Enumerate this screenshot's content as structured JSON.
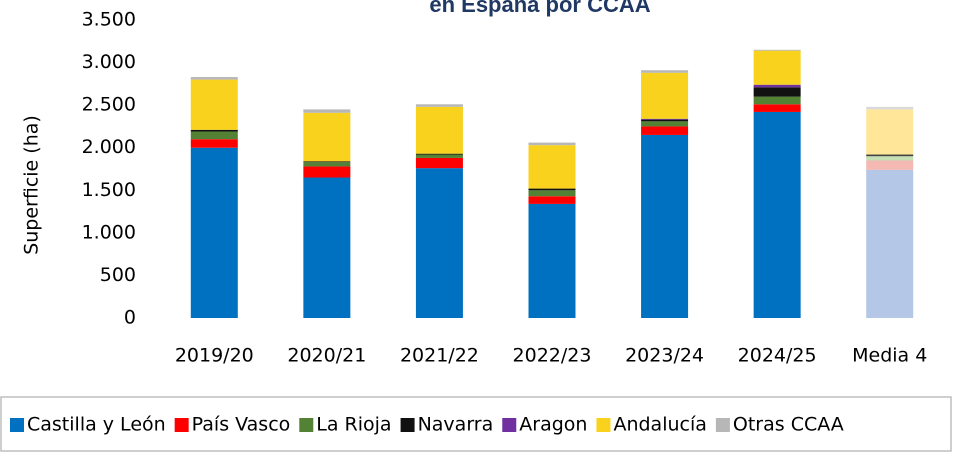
{
  "chart_data": {
    "type": "bar",
    "stacked": true,
    "title": "en España por CCAA",
    "y_label": "Superficie (ha)",
    "categories": [
      "2019/20",
      "2020/21",
      "2021/22",
      "2022/23",
      "2023/24",
      "2024/25",
      "Media 4"
    ],
    "series": [
      {
        "name": "Castilla y León",
        "color": "#0070c0",
        "light_color": "#b4c7e7",
        "values": [
          2000,
          1650,
          1760,
          1340,
          2150,
          2420,
          1740
        ]
      },
      {
        "name": "País Vasco",
        "color": "#ff0000",
        "light_color": "#f4b9b2",
        "values": [
          100,
          130,
          120,
          90,
          100,
          90,
          110
        ]
      },
      {
        "name": "La Rioja",
        "color": "#548235",
        "light_color": "#c5e0b4",
        "values": [
          90,
          50,
          40,
          70,
          60,
          90,
          50
        ]
      },
      {
        "name": "Navarra",
        "color": "#111111",
        "light_color": "#444444",
        "values": [
          20,
          10,
          10,
          20,
          20,
          110,
          20
        ]
      },
      {
        "name": "Aragon",
        "color": "#7030a0",
        "light_color": "#cdb4e0",
        "values": [
          0,
          0,
          0,
          0,
          10,
          30,
          0
        ]
      },
      {
        "name": "Andalucía",
        "color": "#f8d21c",
        "light_color": "#ffe699",
        "values": [
          590,
          570,
          550,
          510,
          540,
          400,
          530
        ]
      },
      {
        "name": "Otras CCAA",
        "color": "#b7b7b7",
        "light_color": "#d9d9d9",
        "values": [
          30,
          40,
          30,
          30,
          30,
          10,
          30
        ]
      }
    ],
    "light_categories": [
      "Media 4"
    ],
    "ylim": [
      0,
      3500
    ],
    "yticks": [
      0,
      500,
      {
        "value": 1000,
        "label": "1.000"
      },
      {
        "value": 1500,
        "label": "1.500"
      },
      {
        "value": 2000,
        "label": "2.000"
      },
      {
        "value": 2500,
        "label": "2.500"
      },
      {
        "value": 3000,
        "label": "3.000"
      },
      {
        "value": 3500,
        "label": "3.500"
      }
    ],
    "grid": false,
    "legend": "bottom"
  }
}
